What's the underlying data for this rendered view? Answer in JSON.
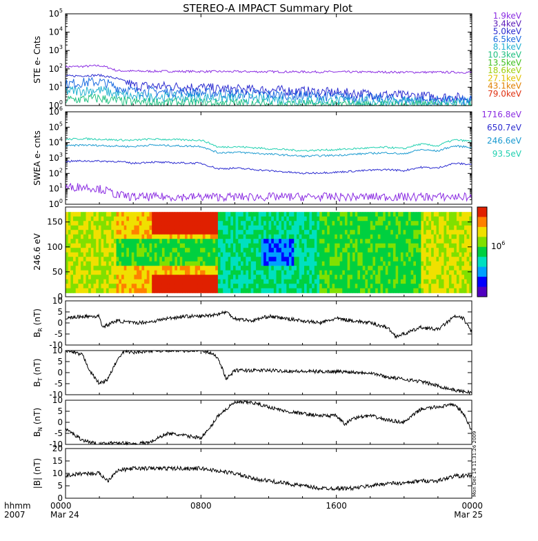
{
  "chart_data": {
    "type": "line",
    "title": "STEREO-A IMPACT Summary Plot",
    "footer": {
      "left_top": "hhmm",
      "left_bottom": "2007",
      "x_ticks": [
        {
          "time": "0000",
          "date": "Mar 24",
          "hour": 0
        },
        {
          "time": "0800",
          "date": "",
          "hour": 8
        },
        {
          "time": "1600",
          "date": "",
          "hour": 16
        },
        {
          "time": "0000",
          "date": "Mar 25",
          "hour": 24
        }
      ],
      "stamp": "Mon Dec 14 11:31:26 2009"
    },
    "xlim": [
      0,
      24
    ],
    "panels": [
      {
        "id": "ste",
        "kind": "log-lines",
        "ylabel": "STE e- Cnts",
        "ylog": true,
        "ylim_exp": [
          0,
          5
        ],
        "legend": [
          {
            "label": "1.9keV",
            "color": "#8a2be2"
          },
          {
            "label": "3.4keV",
            "color": "#5a1ab8"
          },
          {
            "label": "5.0keV",
            "color": "#2a2ad0"
          },
          {
            "label": "6.5keV",
            "color": "#1a6ae0"
          },
          {
            "label": "8.1keV",
            "color": "#20b0d0"
          },
          {
            "label": "10.3keV",
            "color": "#20c080"
          },
          {
            "label": "13.5keV",
            "color": "#40c020"
          },
          {
            "label": "18.6keV",
            "color": "#a0d010"
          },
          {
            "label": "27.1keV",
            "color": "#e0c000"
          },
          {
            "label": "43.1keV",
            "color": "#e08000"
          },
          {
            "label": "79.0keV",
            "color": "#e03010"
          }
        ],
        "series": [
          {
            "color": "#8a2be2",
            "x": [
              0,
              1,
              2,
              2.5,
              3,
              4,
              8,
              12,
              16,
              20,
              24
            ],
            "y": [
              130,
              135,
              150,
              120,
              80,
              75,
              72,
              70,
              68,
              66,
              65
            ]
          },
          {
            "color": "#2a2ad0",
            "x": [
              0,
              2,
              3,
              4,
              8,
              9,
              12,
              16,
              20,
              22,
              24
            ],
            "y": [
              40,
              45,
              30,
              12,
              10,
              8,
              7,
              5,
              3.5,
              3,
              2.5
            ]
          },
          {
            "color": "#1a6ae0",
            "x": [
              0,
              2,
              3,
              4,
              8,
              12,
              16,
              20,
              24
            ],
            "y": [
              15,
              20,
              10,
              6,
              5,
              4,
              3,
              2,
              1.8
            ]
          },
          {
            "color": "#20b0d0",
            "x": [
              0,
              2,
              3,
              4,
              8,
              12,
              16,
              20,
              24
            ],
            "y": [
              6,
              7,
              4,
              3,
              2.8,
              2.2,
              1.8,
              1.5,
              1.3
            ]
          },
          {
            "color": "#20c080",
            "x": [
              0,
              2,
              3,
              4,
              8,
              12,
              16,
              20,
              24
            ],
            "y": [
              2,
              2.5,
              1.8,
              1.5,
              1.4,
              1.2,
              1.1,
              1.05,
              1.0
            ]
          }
        ]
      },
      {
        "id": "swea",
        "kind": "log-lines",
        "ylabel": "SWEA e- cnts",
        "ylog": true,
        "ylim_exp": [
          0,
          6
        ],
        "legend": [
          {
            "label": "1716.8eV",
            "color": "#8a2be2"
          },
          {
            "label": "650.7eV",
            "color": "#2a2ad0"
          },
          {
            "label": "246.6eV",
            "color": "#1a9ad0"
          },
          {
            "label": "93.5eV",
            "color": "#20d0b0"
          }
        ],
        "series": [
          {
            "color": "#20d0b0",
            "x": [
              0,
              1,
              3,
              4,
              5,
              6,
              7,
              8,
              8.5,
              9,
              10,
              12,
              14,
              16,
              18,
              19,
              20,
              21,
              22,
              23,
              24
            ],
            "y": [
              16000,
              18000,
              15000,
              14000,
              17000,
              16000,
              15000,
              14500,
              9000,
              5000,
              5500,
              4000,
              3000,
              3500,
              4500,
              5000,
              4000,
              8000,
              6000,
              15000,
              12000
            ]
          },
          {
            "color": "#1a9ad0",
            "x": [
              0,
              1,
              3,
              4,
              5,
              6,
              7,
              8,
              8.5,
              9,
              10,
              12,
              14,
              16,
              18,
              19,
              20,
              21,
              22,
              23,
              24
            ],
            "y": [
              6000,
              7000,
              6000,
              5500,
              7000,
              6500,
              6000,
              5800,
              3500,
              2200,
              2400,
              1800,
              1300,
              1500,
              2000,
              2200,
              1800,
              3500,
              2800,
              6000,
              5000
            ]
          },
          {
            "color": "#2a2ad0",
            "x": [
              0,
              1,
              3,
              4,
              5,
              6,
              7,
              8,
              8.5,
              9,
              10,
              12,
              14,
              16,
              18,
              19,
              20,
              21,
              22,
              23,
              24
            ],
            "y": [
              600,
              650,
              600,
              450,
              550,
              500,
              480,
              450,
              300,
              200,
              220,
              150,
              100,
              120,
              160,
              180,
              150,
              250,
              220,
              450,
              380
            ]
          },
          {
            "color": "#8a2be2",
            "x": [
              0,
              1,
              2,
              3,
              4,
              8,
              12,
              16,
              20,
              24
            ],
            "y": [
              12,
              14,
              10,
              4,
              3,
              3,
              3,
              3,
              3,
              3
            ]
          }
        ]
      },
      {
        "id": "pad",
        "kind": "spectrogram",
        "ylabel": "246.6 eV",
        "ylim": [
          0,
          180
        ],
        "yticks": [
          0,
          50,
          100,
          150
        ],
        "colorbar_label": "10^6",
        "colormap": [
          "#5000c0",
          "#0000ff",
          "#00a0ff",
          "#00e0c0",
          "#00d040",
          "#80e000",
          "#f0e000",
          "#ff8000",
          "#e02000"
        ]
      },
      {
        "id": "br",
        "kind": "line",
        "ylabel": "B_R (nT)",
        "ylabel_main": "B",
        "ylabel_sub": "R",
        "ylabel_unit": "(nT)",
        "ylim": [
          -10,
          10
        ],
        "yticks": [
          -10,
          -5,
          0,
          5,
          10
        ],
        "series": [
          {
            "color": "#000000",
            "x": [
              0,
              1,
              2,
              2.2,
              3,
              4,
              5,
              6,
              7,
              8,
              9,
              9.5,
              10,
              11,
              12,
              13,
              14,
              15,
              16,
              17,
              18,
              19,
              19.5,
              20,
              21,
              22,
              23,
              23.5,
              24
            ],
            "y": [
              2,
              3,
              3,
              -2,
              1,
              0,
              0.5,
              2,
              3,
              3,
              4,
              5,
              2,
              1,
              3,
              2,
              1,
              0,
              2,
              1,
              0,
              -2,
              -6,
              -5,
              -2,
              -3,
              3,
              2,
              -4
            ]
          }
        ]
      },
      {
        "id": "bt",
        "kind": "line",
        "ylabel": "B_T (nT)",
        "ylabel_main": "B",
        "ylabel_sub": "T",
        "ylabel_unit": "(nT)",
        "ylim": [
          -10,
          10
        ],
        "yticks": [
          -10,
          -5,
          0,
          5,
          10
        ],
        "series": [
          {
            "color": "#000000",
            "x": [
              0,
              0.5,
              1,
              1.5,
              2,
              2.5,
              3,
              3.5,
              4,
              5,
              6,
              7,
              8,
              8.5,
              9,
              9.5,
              10,
              12,
              14,
              16,
              18,
              19,
              20,
              21,
              22,
              23,
              24
            ],
            "y": [
              10,
              9,
              8,
              0,
              -5,
              -3,
              5,
              10,
              9,
              10,
              10,
              10,
              10,
              9,
              7,
              -3,
              1,
              1,
              0.5,
              0.5,
              0,
              -2,
              -3,
              -4,
              -6,
              -8,
              -9
            ]
          }
        ]
      },
      {
        "id": "bn",
        "kind": "line",
        "ylabel": "B_N (nT)",
        "ylabel_main": "B",
        "ylabel_sub": "N",
        "ylabel_unit": "(nT)",
        "ylim": [
          -10,
          10
        ],
        "yticks": [
          -10,
          -5,
          0,
          5,
          10
        ],
        "series": [
          {
            "color": "#000000",
            "x": [
              0,
              1,
              2,
              3,
              4,
              5,
              6,
              7,
              8,
              8.5,
              9,
              9.5,
              10,
              11,
              12,
              13,
              14,
              15,
              16,
              16.5,
              17,
              18,
              19,
              20,
              21,
              22,
              23,
              23.5,
              24
            ],
            "y": [
              -3,
              -8,
              -10,
              -9,
              -10,
              -9,
              -5,
              -6,
              -7,
              -3,
              3,
              6,
              9,
              9,
              7,
              5,
              4,
              3,
              3,
              -1,
              2,
              3,
              1,
              0,
              6,
              7,
              8,
              4,
              -4
            ]
          }
        ]
      },
      {
        "id": "bmag",
        "kind": "line",
        "ylabel": "|B| (nT)",
        "ylim": [
          0,
          20
        ],
        "yticks": [
          0,
          5,
          10,
          15,
          20
        ],
        "series": [
          {
            "color": "#000000",
            "x": [
              0,
              1,
              2,
              2.5,
              3,
              4,
              6,
              8,
              9,
              10,
              11,
              12,
              13,
              14,
              15,
              16,
              17,
              18,
              19,
              20,
              21,
              22,
              23,
              24
            ],
            "y": [
              9,
              10,
              10,
              7,
              11,
              12,
              12,
              12,
              11,
              10,
              8,
              7,
              6,
              5,
              4,
              4,
              4,
              5,
              6,
              6,
              7,
              7,
              9,
              9
            ]
          }
        ]
      }
    ]
  }
}
